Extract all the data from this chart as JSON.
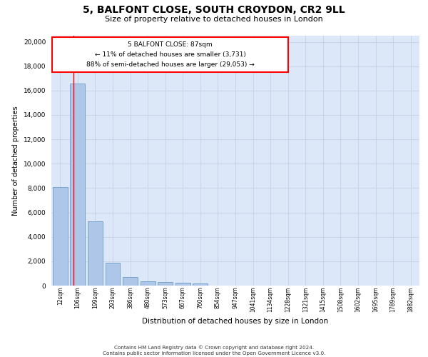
{
  "title_line1": "5, BALFONT CLOSE, SOUTH CROYDON, CR2 9LL",
  "title_line2": "Size of property relative to detached houses in London",
  "xlabel": "Distribution of detached houses by size in London",
  "ylabel": "Number of detached properties",
  "categories": [
    "12sqm",
    "106sqm",
    "199sqm",
    "293sqm",
    "386sqm",
    "480sqm",
    "573sqm",
    "667sqm",
    "760sqm",
    "854sqm",
    "947sqm",
    "1041sqm",
    "1134sqm",
    "1228sqm",
    "1321sqm",
    "1415sqm",
    "1508sqm",
    "1602sqm",
    "1695sqm",
    "1789sqm",
    "1882sqm"
  ],
  "values": [
    8100,
    16600,
    5300,
    1850,
    700,
    380,
    280,
    230,
    180,
    0,
    0,
    0,
    0,
    0,
    0,
    0,
    0,
    0,
    0,
    0,
    0
  ],
  "bar_color": "#aec6e8",
  "bar_edgecolor": "#5a8fc0",
  "annotation_box_text": "5 BALFONT CLOSE: 87sqm\n← 11% of detached houses are smaller (3,731)\n88% of semi-detached houses are larger (29,053) →",
  "ylim": [
    0,
    20500
  ],
  "yticks": [
    0,
    2000,
    4000,
    6000,
    8000,
    10000,
    12000,
    14000,
    16000,
    18000,
    20000
  ],
  "grid_color": "#c8d4e8",
  "background_color": "#dce8f8",
  "footer_line1": "Contains HM Land Registry data © Crown copyright and database right 2024.",
  "footer_line2": "Contains public sector information licensed under the Open Government Licence v3.0."
}
